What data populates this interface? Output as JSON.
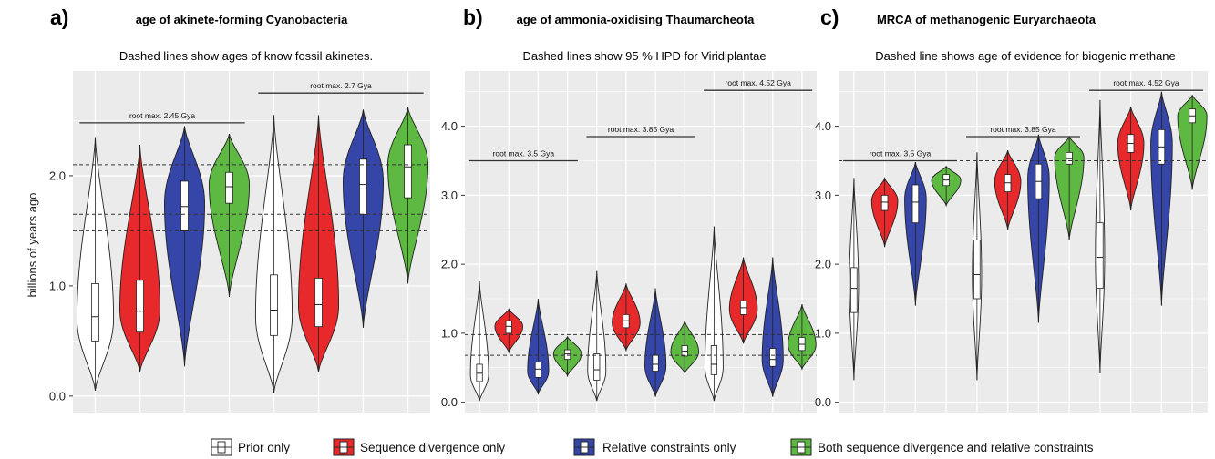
{
  "chart_data": [
    {
      "type": "violin",
      "panel": "a)",
      "title": "age of akinete-forming Cyanobacteria",
      "subtitle": "Dashed lines show ages of know fossil akinetes.",
      "ylabel": "billions of years ago",
      "ylim": [
        -0.15,
        2.95
      ],
      "yticks": [
        0.0,
        1.0,
        2.0
      ],
      "ytick_labels": [
        "0.0",
        "1.0",
        "2.0"
      ],
      "reference_lines": [
        2.1,
        1.65,
        1.5
      ],
      "brackets": [
        {
          "label": "root max. 2.45 Gya",
          "from": 1,
          "to": 4,
          "y": 2.48
        },
        {
          "label": "root max. 2.7 Gya",
          "from": 5,
          "to": 8,
          "y": 2.75
        }
      ],
      "violins": [
        {
          "group": "Prior only",
          "min": 0.05,
          "max": 2.35,
          "q1": 0.5,
          "median": 0.72,
          "q3": 1.02,
          "mode": 0.7,
          "width": 0.82
        },
        {
          "group": "Sequence divergence only",
          "min": 0.22,
          "max": 2.28,
          "q1": 0.58,
          "median": 0.77,
          "q3": 1.05,
          "mode": 0.78,
          "width": 0.9
        },
        {
          "group": "Relative constraints only",
          "min": 0.27,
          "max": 2.45,
          "q1": 1.5,
          "median": 1.72,
          "q3": 1.95,
          "mode": 1.75,
          "width": 0.9
        },
        {
          "group": "Both sequence divergence and relative constraints",
          "min": 0.9,
          "max": 2.38,
          "q1": 1.75,
          "median": 1.9,
          "q3": 2.03,
          "mode": 1.92,
          "width": 0.9
        },
        {
          "group": "Prior only",
          "min": 0.03,
          "max": 2.55,
          "q1": 0.55,
          "median": 0.78,
          "q3": 1.1,
          "mode": 0.72,
          "width": 0.82
        },
        {
          "group": "Sequence divergence only",
          "min": 0.22,
          "max": 2.55,
          "q1": 0.63,
          "median": 0.83,
          "q3": 1.07,
          "mode": 0.82,
          "width": 0.9
        },
        {
          "group": "Relative constraints only",
          "min": 0.62,
          "max": 2.6,
          "q1": 1.65,
          "median": 1.92,
          "q3": 2.15,
          "mode": 1.95,
          "width": 0.9
        },
        {
          "group": "Both sequence divergence and relative constraints",
          "min": 1.02,
          "max": 2.62,
          "q1": 1.8,
          "median": 2.08,
          "q3": 2.28,
          "mode": 2.1,
          "width": 0.9
        }
      ]
    },
    {
      "type": "violin",
      "panel": "b)",
      "title": "age of ammonia-oxidising Thaumarcheota",
      "subtitle": "Dashed lines show 95 % HPD for Viridiplantae",
      "ylabel": "",
      "ylim": [
        -0.15,
        4.8
      ],
      "yticks": [
        0.0,
        1.0,
        2.0,
        3.0,
        4.0
      ],
      "ytick_labels": [
        "0.0",
        "1.0",
        "2.0",
        "3.0",
        "4.0"
      ],
      "reference_lines": [
        0.98,
        0.68
      ],
      "brackets": [
        {
          "label": "root max. 3.5 Gya",
          "from": 1,
          "to": 4,
          "y": 3.5
        },
        {
          "label": "root max. 3.85 Gya",
          "from": 5,
          "to": 8,
          "y": 3.85
        },
        {
          "label": "root max. 4.52 Gya",
          "from": 9,
          "to": 12,
          "y": 4.52
        }
      ],
      "violins": [
        {
          "group": "Prior only",
          "min": 0.02,
          "max": 1.75,
          "q1": 0.3,
          "median": 0.42,
          "q3": 0.55,
          "mode": 0.4,
          "width": 0.62
        },
        {
          "group": "Sequence divergence only",
          "min": 0.72,
          "max": 1.35,
          "q1": 1.0,
          "median": 1.1,
          "q3": 1.18,
          "mode": 1.1,
          "width": 0.95
        },
        {
          "group": "Relative constraints only",
          "min": 0.12,
          "max": 1.5,
          "q1": 0.36,
          "median": 0.48,
          "q3": 0.58,
          "mode": 0.45,
          "width": 0.72
        },
        {
          "group": "Both sequence divergence and relative constraints",
          "min": 0.38,
          "max": 0.95,
          "q1": 0.62,
          "median": 0.7,
          "q3": 0.76,
          "mode": 0.7,
          "width": 0.95
        },
        {
          "group": "Prior only",
          "min": 0.02,
          "max": 1.9,
          "q1": 0.32,
          "median": 0.47,
          "q3": 0.7,
          "mode": 0.45,
          "width": 0.62
        },
        {
          "group": "Sequence divergence only",
          "min": 0.75,
          "max": 1.72,
          "q1": 1.08,
          "median": 1.18,
          "q3": 1.27,
          "mode": 1.15,
          "width": 0.95
        },
        {
          "group": "Relative constraints only",
          "min": 0.08,
          "max": 1.65,
          "q1": 0.45,
          "median": 0.55,
          "q3": 0.68,
          "mode": 0.52,
          "width": 0.72
        },
        {
          "group": "Both sequence divergence and relative constraints",
          "min": 0.42,
          "max": 1.18,
          "q1": 0.67,
          "median": 0.74,
          "q3": 0.82,
          "mode": 0.73,
          "width": 0.95
        },
        {
          "group": "Prior only",
          "min": 0.02,
          "max": 2.55,
          "q1": 0.4,
          "median": 0.55,
          "q3": 0.82,
          "mode": 0.5,
          "width": 0.62
        },
        {
          "group": "Sequence divergence only",
          "min": 0.85,
          "max": 2.1,
          "q1": 1.27,
          "median": 1.37,
          "q3": 1.47,
          "mode": 1.35,
          "width": 0.95
        },
        {
          "group": "Relative constraints only",
          "min": 0.08,
          "max": 2.1,
          "q1": 0.52,
          "median": 0.62,
          "q3": 0.78,
          "mode": 0.62,
          "width": 0.72
        },
        {
          "group": "Both sequence divergence and relative constraints",
          "min": 0.48,
          "max": 1.42,
          "q1": 0.75,
          "median": 0.84,
          "q3": 0.94,
          "mode": 0.83,
          "width": 0.95
        }
      ]
    },
    {
      "type": "violin",
      "panel": "c)",
      "title": "MRCA of methanogenic Euryarchaeota",
      "subtitle": "Dashed line shows age of evidence for biogenic methane",
      "ylabel": "",
      "ylim": [
        -0.15,
        4.8
      ],
      "yticks": [
        0.0,
        1.0,
        2.0,
        3.0,
        4.0
      ],
      "ytick_labels": [
        "0.0",
        "1.0",
        "2.0",
        "3.0",
        "4.0"
      ],
      "reference_lines": [
        3.5
      ],
      "brackets": [
        {
          "label": "root max. 3.5 Gya",
          "from": 1,
          "to": 4,
          "y": 3.5
        },
        {
          "label": "root max. 3.85 Gya",
          "from": 5,
          "to": 8,
          "y": 3.85
        },
        {
          "label": "root max. 4.52 Gya",
          "from": 9,
          "to": 12,
          "y": 4.52
        }
      ],
      "violins": [
        {
          "group": "Prior only",
          "min": 0.32,
          "max": 3.25,
          "q1": 1.3,
          "median": 1.65,
          "q3": 1.95,
          "mode": 1.7,
          "width": 0.3
        },
        {
          "group": "Sequence divergence only",
          "min": 2.25,
          "max": 3.25,
          "q1": 2.78,
          "median": 2.9,
          "q3": 3.0,
          "mode": 2.92,
          "width": 0.85
        },
        {
          "group": "Relative constraints only",
          "min": 1.4,
          "max": 3.48,
          "q1": 2.6,
          "median": 2.9,
          "q3": 3.15,
          "mode": 2.95,
          "width": 0.7
        },
        {
          "group": "Both sequence divergence and relative constraints",
          "min": 2.85,
          "max": 3.42,
          "q1": 3.14,
          "median": 3.22,
          "q3": 3.3,
          "mode": 3.22,
          "width": 0.95
        },
        {
          "group": "Prior only",
          "min": 0.32,
          "max": 3.62,
          "q1": 1.5,
          "median": 1.85,
          "q3": 2.35,
          "mode": 1.85,
          "width": 0.3
        },
        {
          "group": "Sequence divergence only",
          "min": 2.5,
          "max": 3.65,
          "q1": 3.05,
          "median": 3.18,
          "q3": 3.3,
          "mode": 3.2,
          "width": 0.85
        },
        {
          "group": "Relative constraints only",
          "min": 1.15,
          "max": 3.88,
          "q1": 2.95,
          "median": 3.2,
          "q3": 3.45,
          "mode": 3.25,
          "width": 0.7
        },
        {
          "group": "Both sequence divergence and relative constraints",
          "min": 2.35,
          "max": 3.85,
          "q1": 3.45,
          "median": 3.53,
          "q3": 3.62,
          "mode": 3.55,
          "width": 0.95
        },
        {
          "group": "Prior only",
          "min": 0.42,
          "max": 4.38,
          "q1": 1.65,
          "median": 2.1,
          "q3": 2.6,
          "mode": 2.1,
          "width": 0.3
        },
        {
          "group": "Sequence divergence only",
          "min": 2.78,
          "max": 4.28,
          "q1": 3.62,
          "median": 3.75,
          "q3": 3.88,
          "mode": 3.75,
          "width": 0.85
        },
        {
          "group": "Relative constraints only",
          "min": 1.4,
          "max": 4.5,
          "q1": 3.45,
          "median": 3.7,
          "q3": 3.95,
          "mode": 3.75,
          "width": 0.7
        },
        {
          "group": "Both sequence divergence and relative constraints",
          "min": 3.08,
          "max": 4.45,
          "q1": 4.05,
          "median": 4.15,
          "q3": 4.25,
          "mode": 4.15,
          "width": 0.95
        }
      ]
    }
  ],
  "legend": {
    "placement": "bottom",
    "items": [
      {
        "label": "Prior only",
        "color": "#ffffff"
      },
      {
        "label": "Sequence divergence only",
        "color": "#e8292b"
      },
      {
        "label": "Relative constraints only",
        "color": "#3545a8"
      },
      {
        "label": "Both sequence divergence and relative constraints",
        "color": "#5db941"
      }
    ]
  },
  "colors": {
    "panel_background": "#ebebeb",
    "gridline": "#ffffff",
    "reference_line": "#333333"
  }
}
